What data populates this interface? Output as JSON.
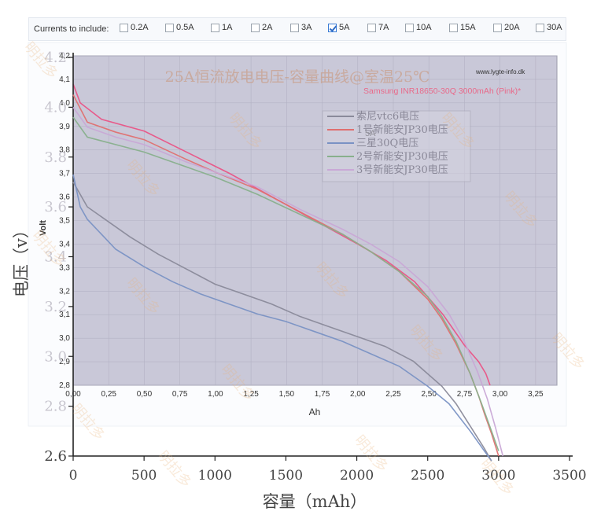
{
  "toolbar": {
    "label": "Currents to include:",
    "options": [
      {
        "label": "0.2A",
        "checked": false
      },
      {
        "label": "0.5A",
        "checked": false
      },
      {
        "label": "1A",
        "checked": false
      },
      {
        "label": "2A",
        "checked": false
      },
      {
        "label": "3A",
        "checked": false
      },
      {
        "label": "5A",
        "checked": true
      },
      {
        "label": "7A",
        "checked": false
      },
      {
        "label": "10A",
        "checked": false
      },
      {
        "label": "15A",
        "checked": false
      },
      {
        "label": "20A",
        "checked": false
      },
      {
        "label": "30A",
        "checked": false
      }
    ]
  },
  "chart_data": [
    {
      "type": "line",
      "title": "25A恒流放电电压-容量曲线@室温25℃",
      "xlabel": "容量（mAh）",
      "ylabel": "电压（v）",
      "xlim": [
        0,
        3500
      ],
      "ylim": [
        2.6,
        4.2
      ],
      "xticks": [
        "0",
        "500",
        "1000",
        "1500",
        "2000",
        "2500",
        "3000",
        "3500"
      ],
      "yticks": [
        "2.6",
        "2.8",
        "3.0",
        "3.2",
        "3.4",
        "3.6",
        "3.8",
        "4.0",
        "4.2"
      ],
      "watermark": "明拉多",
      "series": [
        {
          "name": "索尼vtc6电压",
          "color": "#8a8a9a",
          "x": [
            0,
            100,
            200,
            400,
            600,
            800,
            1000,
            1200,
            1400,
            1600,
            1800,
            2000,
            2200,
            2400,
            2600,
            2700,
            2800,
            2900,
            2950
          ],
          "y": [
            3.7,
            3.6,
            3.56,
            3.48,
            3.41,
            3.35,
            3.29,
            3.25,
            3.21,
            3.16,
            3.12,
            3.08,
            3.04,
            2.98,
            2.88,
            2.81,
            2.72,
            2.63,
            2.58
          ]
        },
        {
          "name": "1号新能安JP30电压",
          "color": "#e07070",
          "x": [
            0,
            100,
            300,
            500,
            800,
            1000,
            1300,
            1600,
            1900,
            2100,
            2300,
            2500,
            2600,
            2700,
            2800,
            2860,
            2900,
            2950,
            3000
          ],
          "y": [
            4.05,
            3.94,
            3.9,
            3.87,
            3.79,
            3.74,
            3.67,
            3.58,
            3.49,
            3.42,
            3.34,
            3.23,
            3.15,
            3.05,
            2.93,
            2.84,
            2.77,
            2.69,
            2.6
          ]
        },
        {
          "name": "三星30Q电压",
          "color": "#7a92c4",
          "x": [
            0,
            50,
            100,
            300,
            500,
            700,
            900,
            1100,
            1300,
            1500,
            1700,
            1900,
            2100,
            2300,
            2500,
            2650,
            2800,
            2900,
            2950
          ],
          "y": [
            3.73,
            3.6,
            3.55,
            3.43,
            3.36,
            3.3,
            3.25,
            3.21,
            3.17,
            3.14,
            3.1,
            3.06,
            3.01,
            2.96,
            2.88,
            2.81,
            2.7,
            2.62,
            2.58
          ]
        },
        {
          "name": "2号新能安JP30电压",
          "color": "#88b08c",
          "x": [
            0,
            100,
            300,
            500,
            800,
            1000,
            1300,
            1600,
            1900,
            2100,
            2300,
            2500,
            2600,
            2700,
            2800,
            2880,
            2950,
            3000
          ],
          "y": [
            3.96,
            3.88,
            3.85,
            3.82,
            3.76,
            3.72,
            3.65,
            3.57,
            3.49,
            3.42,
            3.34,
            3.24,
            3.16,
            3.06,
            2.93,
            2.81,
            2.7,
            2.62
          ]
        },
        {
          "name": "3号新能安JP30电压",
          "color": "#c9a8d6",
          "x": [
            0,
            100,
            300,
            500,
            800,
            1000,
            1300,
            1600,
            1900,
            2100,
            2300,
            2500,
            2650,
            2750,
            2850,
            2920,
            2980,
            3030
          ],
          "y": [
            4.0,
            3.92,
            3.88,
            3.85,
            3.78,
            3.74,
            3.68,
            3.59,
            3.51,
            3.45,
            3.38,
            3.28,
            3.17,
            3.07,
            2.94,
            2.83,
            2.71,
            2.6
          ]
        }
      ]
    },
    {
      "type": "line",
      "title": "5A",
      "xlabel": "Ah",
      "ylabel": "Volt",
      "xlim": [
        0,
        3.4
      ],
      "ylim": [
        2.8,
        4.2
      ],
      "xticks": [
        "0,00",
        "0,25",
        "0,50",
        "0,75",
        "1,00",
        "1,25",
        "1,50",
        "1,75",
        "2,00",
        "2,25",
        "2,50",
        "2,75",
        "3,00",
        "3,25"
      ],
      "yticks": [
        "2,8",
        "2,9",
        "3,0",
        "3,1",
        "3,2",
        "3,3",
        "3,4",
        "3,5",
        "3,6",
        "3,7",
        "3,8",
        "3,9",
        "4,0",
        "4,1",
        "4,2"
      ],
      "source": "www.lygte-info.dk",
      "legend": "Samsung INR18650-30Q 3000mAh (Pink)*",
      "series": [
        {
          "color": "#e85a8a",
          "x": [
            0,
            0.05,
            0.2,
            0.5,
            0.8,
            1.1,
            1.4,
            1.7,
            2.0,
            2.2,
            2.4,
            2.6,
            2.75,
            2.85,
            2.9,
            2.93
          ],
          "y": [
            4.08,
            4.0,
            3.93,
            3.88,
            3.79,
            3.7,
            3.6,
            3.5,
            3.4,
            3.33,
            3.24,
            3.1,
            2.97,
            2.9,
            2.85,
            2.8
          ]
        }
      ]
    }
  ]
}
